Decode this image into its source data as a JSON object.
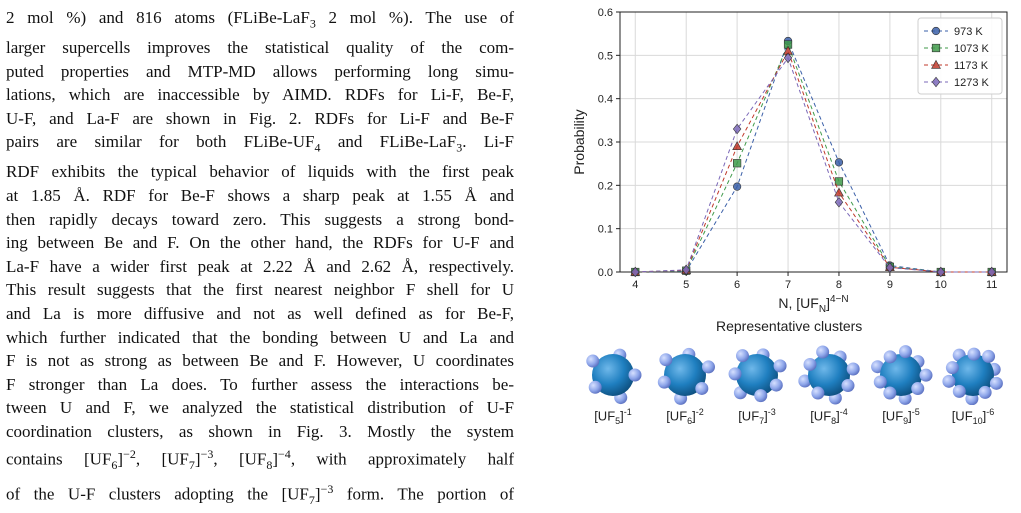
{
  "text": {
    "lines": [
      "2 mol %) and 816 atoms (FLiBe-LaF$3 2 mol %). The use of",
      "larger supercells improves the statistical quality of the com-",
      "puted properties and MTP-MD allows performing long simu-",
      "lations, which are inaccessible by AIMD. RDFs for Li-F, Be-F,",
      "U-F, and La-F are shown in Fig. 2. RDFs for Li-F and Be-F",
      "pairs are similar for both FLiBe-UF$4 and FLiBe-LaF$3. Li-F",
      "RDF exhibits the typical behavior of liquids with the first peak",
      "at 1.85 Å. RDF for Be-F shows a sharp peak at 1.55 Å and",
      "then rapidly decays toward zero. This suggests a strong bond-",
      "ing between Be and F. On the other hand, the RDFs for U-F and",
      "La-F have a wider first peak at 2.22 Å and 2.62 Å, respectively.",
      "This result suggests that the first nearest neighbor F shell for U",
      "and La is more diffusive and not as well defined as for Be-F,",
      "which further indicated that the bonding between U and La and",
      "F is not as strong as between Be and F. However, U coordinates",
      "F stronger than La does. To further assess the interactions be-",
      "tween U and F, we analyzed the statistical distribution of U-F",
      "coordination clusters, as shown in Fig. 3. Mostly the system",
      "contains [UF$6]^−2, [UF$7]^−3, [UF$8]^−4, with approximately half",
      "of the U-F clusters adopting the [UF$7]^−3 form. The portion of"
    ]
  },
  "chart_data": {
    "type": "line",
    "x": [
      4,
      5,
      6,
      7,
      8,
      9,
      10,
      11
    ],
    "xlabel": "N, [UF_N]^{4−N}",
    "ylabel": "Probability",
    "xlim": [
      3.7,
      11.3
    ],
    "ylim": [
      0,
      0.6
    ],
    "yticks": [
      "0.0",
      "0.1",
      "0.2",
      "0.3",
      "0.4",
      "0.5",
      "0.6"
    ],
    "xticks": [
      "4",
      "5",
      "6",
      "7",
      "8",
      "9",
      "10",
      "11"
    ],
    "grid": true,
    "legend_position": "top-right",
    "series": [
      {
        "name": "973 K",
        "color": "#3a5fa8",
        "marker": "circle",
        "values": [
          0.0,
          0.002,
          0.197,
          0.533,
          0.253,
          0.015,
          0.0,
          0.0
        ]
      },
      {
        "name": "1073 K",
        "color": "#3f9a4a",
        "marker": "square",
        "values": [
          0.0,
          0.003,
          0.251,
          0.525,
          0.209,
          0.012,
          0.0,
          0.0
        ]
      },
      {
        "name": "1173 K",
        "color": "#c0392b",
        "marker": "triangle",
        "values": [
          0.0,
          0.004,
          0.29,
          0.51,
          0.183,
          0.011,
          0.0,
          0.0
        ]
      },
      {
        "name": "1273 K",
        "color": "#7b68b8",
        "marker": "diamond",
        "values": [
          0.0,
          0.005,
          0.33,
          0.494,
          0.161,
          0.01,
          0.0,
          0.0
        ]
      }
    ]
  },
  "clusters": {
    "title": "Representative clusters",
    "items": [
      {
        "base": "[UF",
        "sub": "5",
        "sup": "-1",
        "n": 5
      },
      {
        "base": "[UF",
        "sub": "6",
        "sup": "-2",
        "n": 6
      },
      {
        "base": "[UF",
        "sub": "7",
        "sup": "-3",
        "n": 7
      },
      {
        "base": "[UF",
        "sub": "8",
        "sup": "-4",
        "n": 8
      },
      {
        "base": "[UF",
        "sub": "9",
        "sup": "-5",
        "n": 9
      },
      {
        "base": "[UF",
        "sub": "10",
        "sup": "-6",
        "n": 10
      }
    ],
    "colors": {
      "u_atom": "#1f7fc0",
      "f_atom": "#8ea6ea"
    }
  }
}
